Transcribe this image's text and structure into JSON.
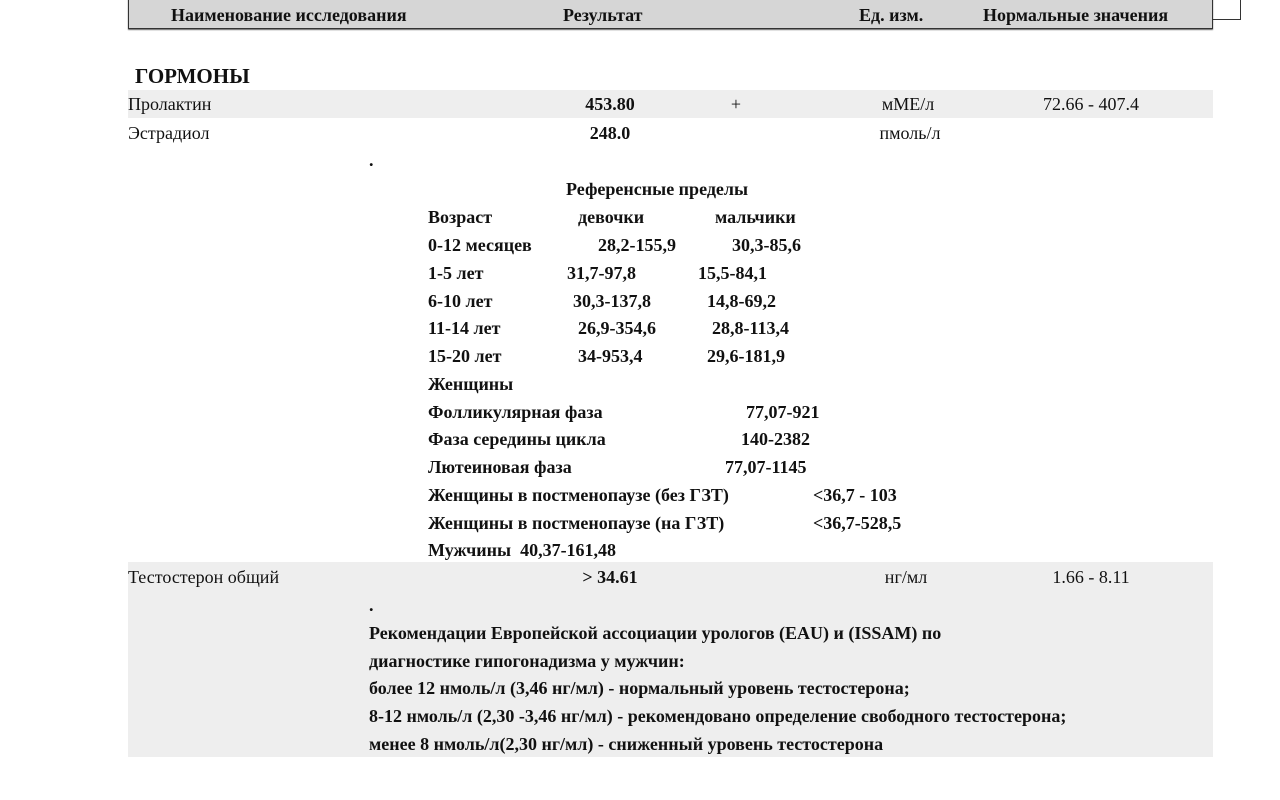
{
  "header": {
    "name": "Наименование исследования",
    "result": "Результат",
    "unit": "Ед. изм.",
    "normal": "Нормальные значения"
  },
  "section_title": "ГОРМОНЫ",
  "rows": [
    {
      "name": "Пролактин",
      "result": "453.80",
      "flag": "+",
      "unit": "мМЕ/л",
      "normal": "72.66 - 407.4"
    },
    {
      "name": "Эстрадиол",
      "result": "248.0",
      "unit": "пмоль/л"
    },
    {
      "name": "Тестостерон общий",
      "result": "> 34.61",
      "unit": "нг/мл",
      "normal": "1.66 - 8.11"
    }
  ],
  "estradiol_note": {
    "dot": ".",
    "title": "Референсные пределы",
    "cols": [
      "Возраст",
      "девочки",
      "мальчики"
    ],
    "ages": [
      [
        "0-12 месяцев",
        "28,2-155,9",
        "30,3-85,6"
      ],
      [
        "1-5 лет",
        "31,7-97,8",
        "15,5-84,1"
      ],
      [
        "6-10 лет",
        "30,3-137,8",
        "14,8-69,2"
      ],
      [
        "11-14 лет",
        "26,9-354,6",
        "28,8-113,4"
      ],
      [
        "15-20 лет",
        "34-953,4",
        "29,6-181,9"
      ]
    ],
    "women": "Женщины",
    "phases": [
      [
        "Фолликулярная фаза",
        "77,07-921"
      ],
      [
        "Фаза середины цикла",
        "140-2382"
      ],
      [
        "Лютеиновая фаза",
        "77,07-1145"
      ],
      [
        "Женщины в постменопаузе (без ГЗТ)",
        "<36,7 - 103"
      ],
      [
        "Женщины в постменопаузе (на ГЗТ)",
        "<36,7-528,5"
      ]
    ],
    "men": "Мужчины  40,37-161,48"
  },
  "testosterone_note": {
    "dot": ".",
    "lines": [
      "Рекомендации Европейской ассоциации урологов (EAU) и (ISSAM) по",
      "диагностике гипогонадизма у мужчин:",
      "более 12 нмоль/л (3,46 нг/мл) - нормальный уровень тестостерона;",
      "8-12 нмоль/л (2,30 -3,46 нг/мл) - рекомендовано определение свободного тестостерона;",
      "менее 8 нмоль/л(2,30 нг/мл) - сниженный уровень тестостерона"
    ]
  }
}
